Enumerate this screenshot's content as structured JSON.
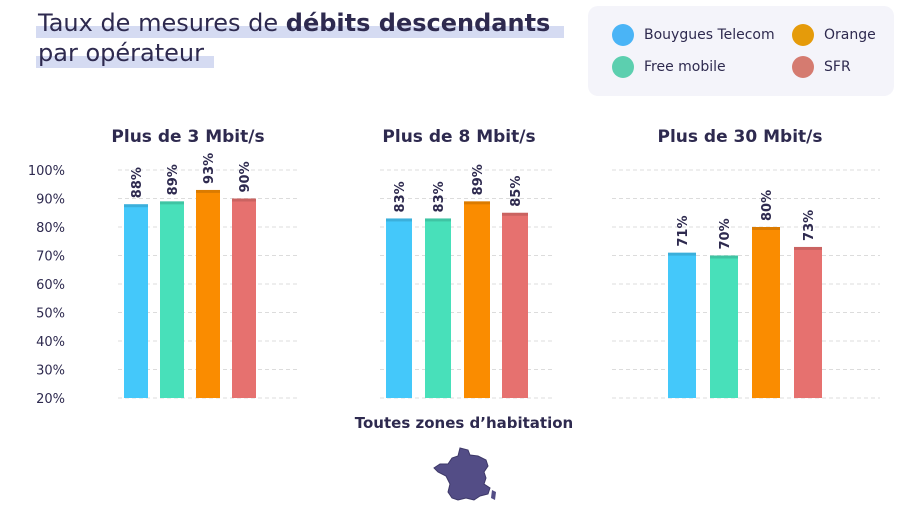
{
  "title": {
    "prefix": "Taux de mesures de ",
    "bold": "débits descendants",
    "line2": "par opérateur"
  },
  "legend": [
    {
      "label": "Bouygues Telecom",
      "color": "#4ab4f6"
    },
    {
      "label": "Orange",
      "color": "#e59b0a"
    },
    {
      "label": "Free mobile",
      "color": "#5ccfaf"
    },
    {
      "label": "SFR",
      "color": "#d57b70"
    }
  ],
  "footer_label": "Toutes zones d’habitation",
  "map_icon": "france-map-icon",
  "chart_data": {
    "type": "bar",
    "ylim": [
      20,
      100
    ],
    "y_ticks": [
      "20%",
      "30%",
      "40%",
      "50%",
      "60%",
      "70%",
      "80%",
      "90%",
      "100%"
    ],
    "y_tick_values": [
      20,
      30,
      40,
      50,
      60,
      70,
      80,
      90,
      100
    ],
    "grid": true,
    "panels": [
      {
        "title": "Plus de 3 Mbit/s",
        "series": [
          {
            "name": "Bouygues Telecom",
            "value": 88,
            "label": "88%",
            "color": "#44c8fa"
          },
          {
            "name": "Free mobile",
            "value": 89,
            "label": "89%",
            "color": "#48e0ba"
          },
          {
            "name": "Orange",
            "value": 93,
            "label": "93%",
            "color": "#fa8c00"
          },
          {
            "name": "SFR",
            "value": 90,
            "label": "90%",
            "color": "#e6716f"
          }
        ]
      },
      {
        "title": "Plus de 8 Mbit/s",
        "series": [
          {
            "name": "Bouygues Telecom",
            "value": 83,
            "label": "83%",
            "color": "#44c8fa"
          },
          {
            "name": "Free mobile",
            "value": 83,
            "label": "83%",
            "color": "#48e0ba"
          },
          {
            "name": "Orange",
            "value": 89,
            "label": "89%",
            "color": "#fa8c00"
          },
          {
            "name": "SFR",
            "value": 85,
            "label": "85%",
            "color": "#e6716f"
          }
        ]
      },
      {
        "title": "Plus de 30 Mbit/s",
        "series": [
          {
            "name": "Bouygues Telecom",
            "value": 71,
            "label": "71%",
            "color": "#44c8fa"
          },
          {
            "name": "Free mobile",
            "value": 70,
            "label": "70%",
            "color": "#48e0ba"
          },
          {
            "name": "Orange",
            "value": 80,
            "label": "80%",
            "color": "#fa8c00"
          },
          {
            "name": "SFR",
            "value": 73,
            "label": "73%",
            "color": "#e6716f"
          }
        ]
      }
    ]
  }
}
